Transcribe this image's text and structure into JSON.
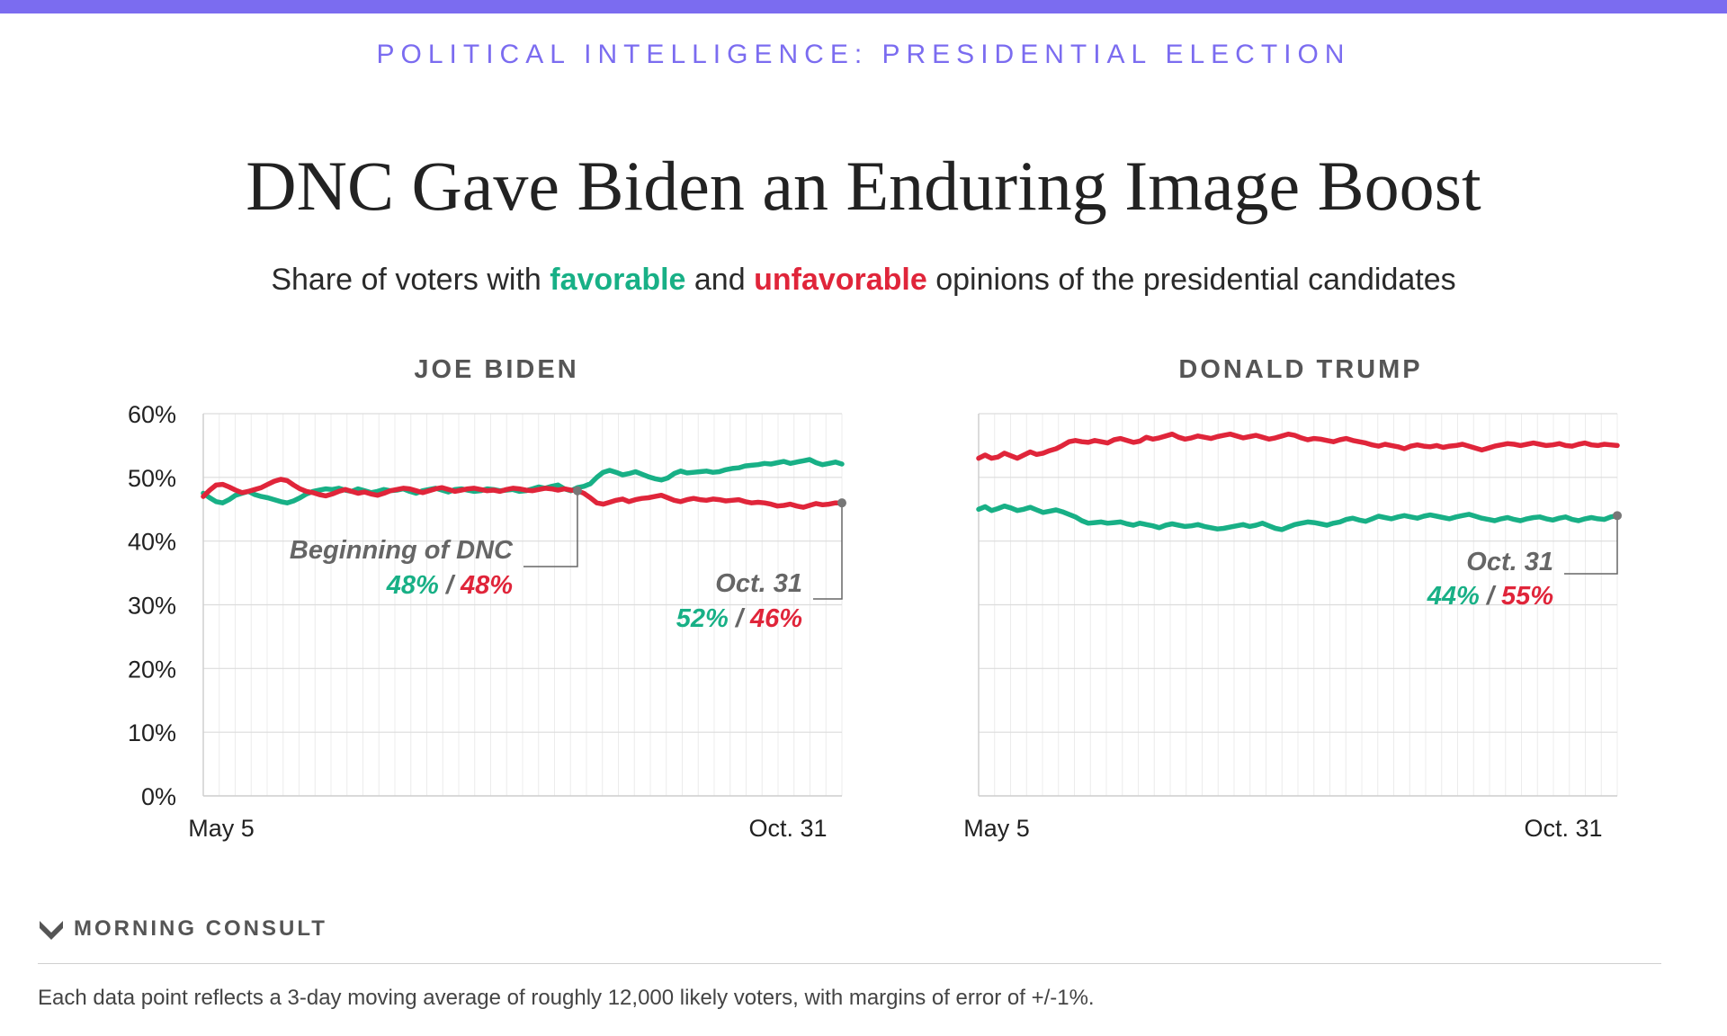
{
  "header": {
    "kicker": "POLITICAL INTELLIGENCE: PRESIDENTIAL ELECTION",
    "title": "DNC Gave Biden an Enduring Image Boost",
    "subtitle_pre": "Share of voters with ",
    "subtitle_fav": "favorable",
    "subtitle_mid": " and ",
    "subtitle_unfav": "unfavorable",
    "subtitle_post": " opinions of the presidential candidates"
  },
  "colors": {
    "favorable": "#18b086",
    "unfavorable": "#e0253a",
    "accent": "#7b6cf0",
    "annotation": "#666666"
  },
  "footer": {
    "brand": "MORNING CONSULT",
    "note": "Each data point reflects a 3-day moving average of roughly 12,000 likely voters, with margins of error of +/-1%."
  },
  "chart_data": [
    {
      "type": "line",
      "title": "JOE BIDEN",
      "x_start_label": "May 5",
      "x_end_label": "Oct. 31",
      "ylim": [
        0,
        60
      ],
      "yticks": [
        "0%",
        "10%",
        "20%",
        "30%",
        "40%",
        "50%",
        "60%"
      ],
      "grid": true,
      "series": [
        {
          "key": "favorable",
          "values": [
            47.5,
            46.8,
            46.2,
            46.0,
            46.5,
            47.2,
            47.5,
            47.8,
            47.3,
            47.0,
            46.8,
            46.5,
            46.2,
            46.0,
            46.3,
            46.8,
            47.4,
            47.8,
            48.0,
            48.2,
            48.1,
            48.3,
            48.0,
            47.8,
            48.2,
            47.9,
            47.6,
            47.8,
            48.1,
            47.9,
            48.0,
            48.2,
            47.8,
            47.5,
            47.9,
            48.1,
            48.3,
            48.0,
            47.7,
            48.1,
            48.2,
            48.0,
            47.8,
            47.9,
            48.2,
            48.1,
            47.9,
            48.0,
            48.1,
            47.8,
            47.9,
            48.2,
            48.5,
            48.3,
            48.6,
            48.8,
            48.2,
            47.9,
            48.4,
            48.6,
            49.0,
            50.0,
            50.8,
            51.1,
            50.8,
            50.4,
            50.6,
            50.9,
            50.5,
            50.1,
            49.8,
            49.6,
            49.9,
            50.6,
            51.0,
            50.7,
            50.8,
            50.9,
            51.0,
            50.8,
            50.9,
            51.2,
            51.4,
            51.5,
            51.8,
            51.9,
            52.0,
            52.2,
            52.1,
            52.3,
            52.5,
            52.2,
            52.4,
            52.6,
            52.8,
            52.3,
            52.0,
            52.2,
            52.4,
            52.1
          ]
        },
        {
          "key": "unfavorable",
          "values": [
            47.0,
            48.0,
            48.8,
            48.9,
            48.5,
            48.0,
            47.6,
            47.8,
            48.1,
            48.4,
            48.9,
            49.4,
            49.7,
            49.5,
            48.8,
            48.2,
            47.8,
            47.6,
            47.3,
            47.1,
            47.4,
            47.8,
            48.1,
            47.8,
            47.5,
            47.7,
            47.4,
            47.2,
            47.5,
            47.9,
            48.1,
            48.3,
            48.2,
            47.9,
            47.6,
            47.9,
            48.2,
            48.4,
            48.1,
            47.8,
            48.0,
            48.2,
            48.3,
            48.1,
            47.9,
            48.0,
            47.8,
            48.1,
            48.3,
            48.2,
            48.0,
            47.9,
            48.1,
            48.3,
            48.2,
            48.0,
            48.2,
            48.0,
            47.9,
            47.5,
            46.8,
            46.0,
            45.8,
            46.1,
            46.4,
            46.6,
            46.2,
            46.5,
            46.7,
            46.8,
            47.0,
            47.2,
            46.8,
            46.4,
            46.2,
            46.5,
            46.7,
            46.5,
            46.4,
            46.6,
            46.5,
            46.3,
            46.4,
            46.5,
            46.2,
            46.0,
            46.1,
            46.0,
            45.8,
            45.5,
            45.6,
            45.8,
            45.5,
            45.3,
            45.6,
            45.9,
            45.7,
            45.8,
            46.0,
            46.0
          ]
        }
      ],
      "annotations": [
        {
          "label": "Beginning of DNC",
          "favorable": "48%",
          "unfavorable": "48%",
          "at_index": 58
        },
        {
          "label": "Oct. 31",
          "favorable": "52%",
          "unfavorable": "46%",
          "at_index": 99
        }
      ]
    },
    {
      "type": "line",
      "title": "DONALD TRUMP",
      "x_start_label": "May 5",
      "x_end_label": "Oct. 31",
      "ylim": [
        0,
        60
      ],
      "grid": true,
      "series": [
        {
          "key": "favorable",
          "values": [
            45.0,
            45.4,
            44.8,
            45.1,
            45.5,
            45.2,
            44.8,
            45.0,
            45.3,
            44.9,
            44.5,
            44.7,
            44.9,
            44.6,
            44.2,
            43.8,
            43.2,
            42.8,
            42.9,
            43.0,
            42.8,
            42.9,
            43.0,
            42.7,
            42.5,
            42.8,
            42.6,
            42.4,
            42.1,
            42.5,
            42.7,
            42.5,
            42.3,
            42.4,
            42.6,
            42.3,
            42.1,
            41.9,
            42.0,
            42.2,
            42.4,
            42.6,
            42.3,
            42.5,
            42.8,
            42.4,
            42.0,
            41.8,
            42.2,
            42.6,
            42.8,
            43.0,
            42.9,
            42.7,
            42.5,
            42.8,
            43.0,
            43.4,
            43.6,
            43.3,
            43.1,
            43.5,
            43.9,
            43.7,
            43.5,
            43.8,
            44.0,
            43.8,
            43.6,
            43.9,
            44.1,
            43.9,
            43.7,
            43.5,
            43.8,
            44.0,
            44.2,
            43.9,
            43.6,
            43.4,
            43.2,
            43.5,
            43.7,
            43.4,
            43.2,
            43.5,
            43.7,
            43.8,
            43.5,
            43.3,
            43.6,
            43.8,
            43.4,
            43.2,
            43.5,
            43.7,
            43.5,
            43.4,
            43.8,
            44.0
          ]
        },
        {
          "key": "unfavorable",
          "values": [
            53.0,
            53.5,
            53.0,
            53.2,
            53.8,
            53.4,
            53.0,
            53.5,
            54.0,
            53.6,
            53.8,
            54.2,
            54.5,
            55.0,
            55.6,
            55.8,
            55.6,
            55.5,
            55.8,
            55.6,
            55.4,
            55.9,
            56.1,
            55.8,
            55.5,
            55.7,
            56.3,
            56.0,
            56.2,
            56.5,
            56.8,
            56.3,
            56.0,
            56.2,
            56.5,
            56.3,
            56.1,
            56.4,
            56.6,
            56.8,
            56.5,
            56.2,
            56.4,
            56.6,
            56.3,
            56.0,
            56.2,
            56.5,
            56.8,
            56.6,
            56.2,
            55.9,
            56.1,
            56.0,
            55.8,
            55.6,
            55.9,
            56.1,
            55.8,
            55.6,
            55.4,
            55.1,
            54.9,
            55.2,
            55.0,
            54.8,
            54.5,
            54.9,
            55.1,
            54.9,
            54.8,
            55.0,
            54.7,
            54.9,
            55.0,
            55.2,
            54.9,
            54.6,
            54.3,
            54.6,
            54.9,
            55.1,
            55.3,
            55.2,
            55.0,
            55.2,
            55.4,
            55.2,
            55.0,
            55.1,
            55.3,
            55.0,
            54.9,
            55.2,
            55.4,
            55.1,
            55.0,
            55.2,
            55.1,
            55.0
          ]
        }
      ],
      "annotations": [
        {
          "label": "Oct. 31",
          "favorable": "44%",
          "unfavorable": "55%",
          "at_index": 99
        }
      ]
    }
  ]
}
